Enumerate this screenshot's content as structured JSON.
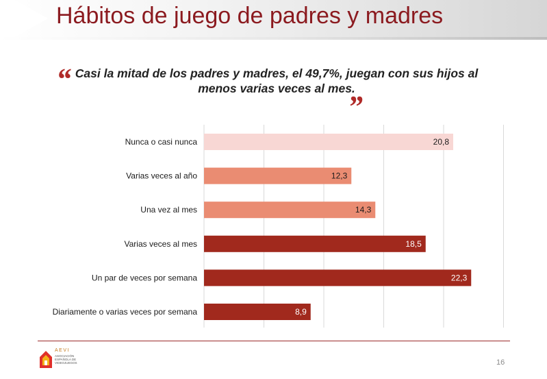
{
  "page": {
    "title": "Hábitos de juego de padres y madres",
    "quote_line1": "Casi la mitad de los padres y madres, el 49,7%, juegan con sus hijos al",
    "quote_line2": "menos varias veces al mes.",
    "quote_open": "“",
    "quote_close": "”",
    "page_number": "16",
    "logo_text": "AEVI",
    "logo_sub": "ASOCIACIÓN ESPAÑOLA DE VIDEOJUEGOS"
  },
  "colors": {
    "title": "#8b1a1f",
    "bar_light": "#f8d7d4",
    "bar_mid": "#ea8c72",
    "bar_dark": "#a1291d",
    "grid": "#d9d9d9"
  },
  "chart_data": {
    "type": "bar",
    "orientation": "horizontal",
    "categories": [
      "Nunca o casi nunca",
      "Varias veces al año",
      "Una vez al mes",
      "Varias veces al mes",
      "Un par de veces por semana",
      "Diariamente o varias veces por semana"
    ],
    "values": [
      20.8,
      12.3,
      14.3,
      18.5,
      22.3,
      8.9
    ],
    "value_labels": [
      "20,8",
      "12,3",
      "14,3",
      "18,5",
      "22,3",
      "8,9"
    ],
    "bar_colors": [
      "#f8d7d4",
      "#ea8c72",
      "#ea8c72",
      "#a1291d",
      "#a1291d",
      "#a1291d"
    ],
    "label_colors": [
      "#1a1a1a",
      "#1a1a1a",
      "#1a1a1a",
      "#ffffff",
      "#ffffff",
      "#ffffff"
    ],
    "xlim": [
      0,
      25
    ],
    "grid": true,
    "title": "",
    "xlabel": "",
    "ylabel": ""
  }
}
